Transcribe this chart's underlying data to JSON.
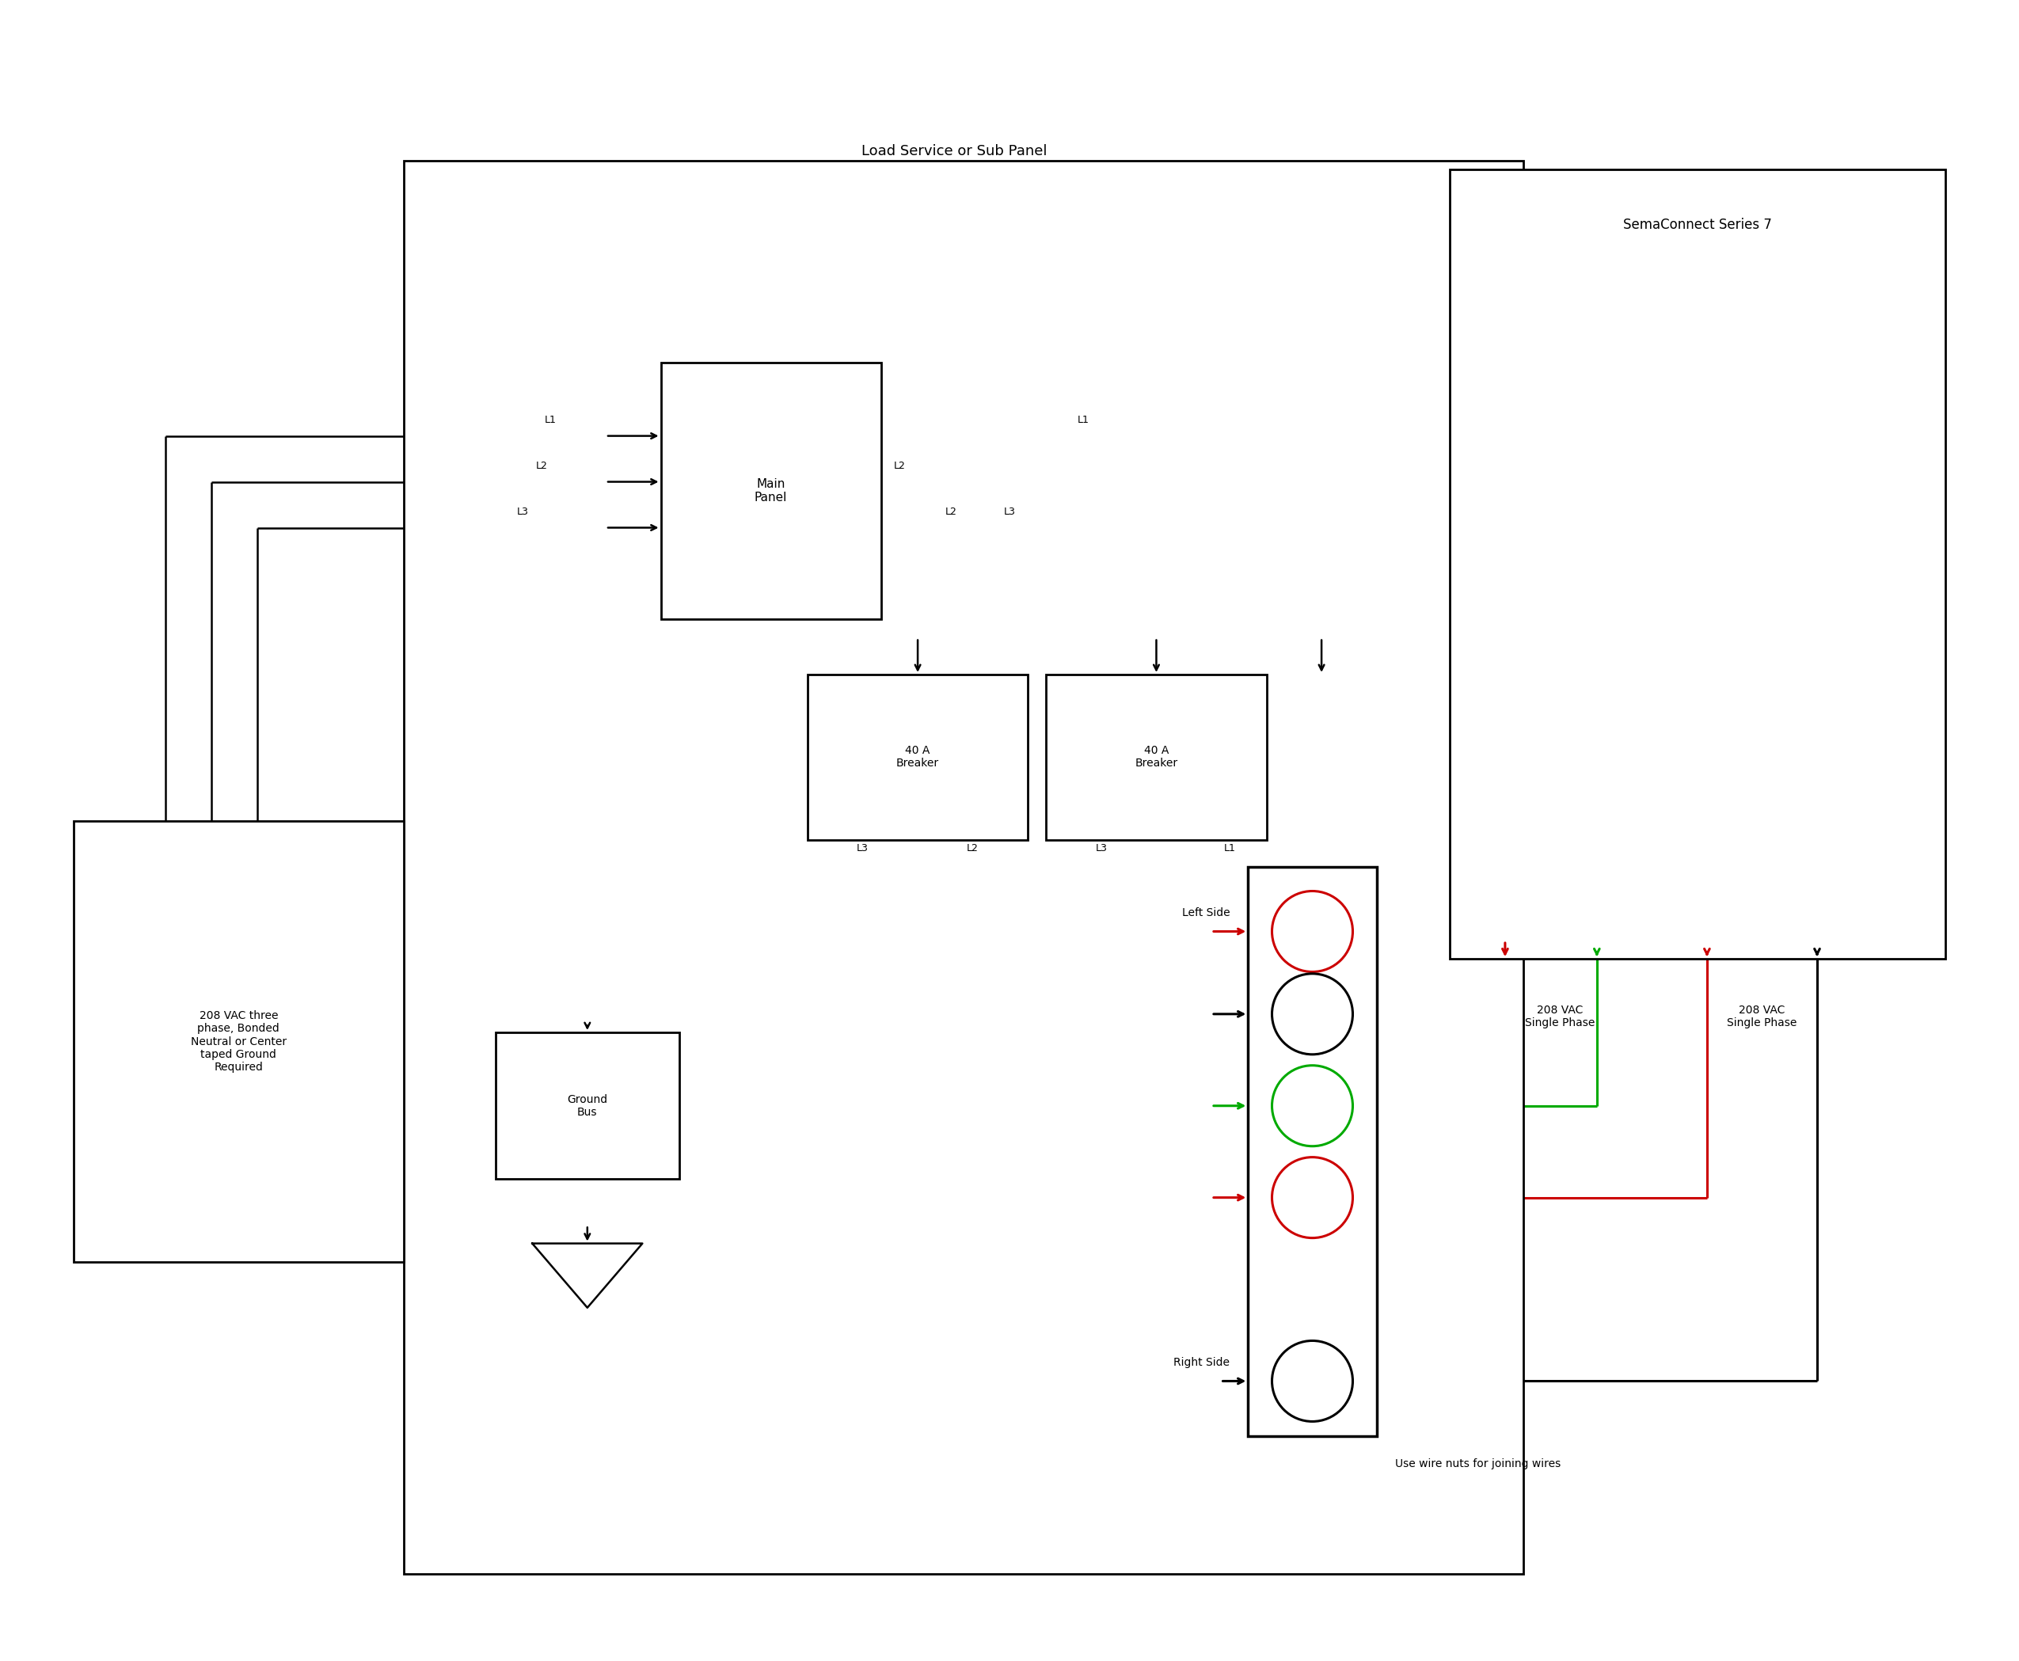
{
  "bg_color": "#ffffff",
  "lc": "#000000",
  "rc": "#cc0000",
  "gc": "#00aa00",
  "title": "Load Service or Sub Panel",
  "sema_title": "SemaConnect Series 7",
  "source_label": "208 VAC three\nphase, Bonded\nNeutral or Center\ntaped Ground\nRequired",
  "ground_label": "Ground\nBus",
  "left_label": "Left Side",
  "right_label": "Right Side",
  "wire_note": "Use wire nuts for joining wires",
  "vac_left": "208 VAC\nSingle Phase",
  "vac_right": "208 VAC\nSingle Phase",
  "panel_lbl": "Load Service or Sub Panel",
  "breaker_lbl": "40 A\nBreaker",
  "main_lbl": "Main\nPanel"
}
